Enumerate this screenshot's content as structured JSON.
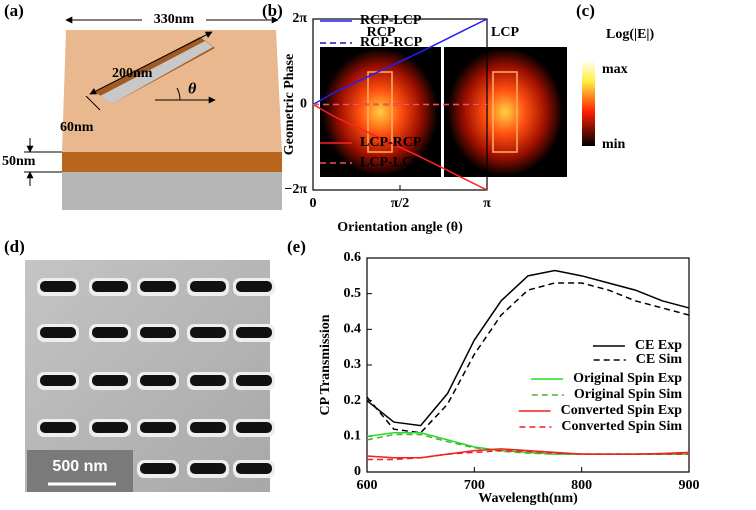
{
  "panel_labels": [
    "(a)",
    "(b)",
    "(c)",
    "(d)",
    "(e)"
  ],
  "diagram_a": {
    "width": "330nm",
    "length": "200nm",
    "slot_width": "60nm",
    "height": "50nm",
    "angle": "θ"
  },
  "field_map": {
    "labels": [
      "RCP",
      "LCP"
    ],
    "colorbar_title": "Log(|E|)",
    "max": "max",
    "min": "min"
  },
  "sem_image": {
    "scale_bar": "500 nm"
  },
  "chart_data": [
    {
      "type": "line",
      "xlabel": "Orientation angle (θ)",
      "ylabel": "Geometric Phase",
      "x": [
        0,
        0.3927,
        0.7854,
        1.1781,
        1.5708,
        1.9635,
        2.3562,
        2.7489,
        3.1416
      ],
      "xlim": [
        0,
        3.1416
      ],
      "xticks": [
        0,
        {
          "value": 1.5708,
          "label": "π/2"
        },
        {
          "value": 3.1416,
          "label": "π"
        }
      ],
      "ylim": [
        -6.2832,
        6.2832
      ],
      "yticks": [
        {
          "value": -6.2832,
          "label": "−2π"
        },
        0,
        {
          "value": 6.2832,
          "label": "2π"
        }
      ],
      "series": [
        {
          "name": "RCP-LCP",
          "color": "#1f1fff",
          "dashed": false,
          "values": [
            0,
            0.9,
            1.65,
            2.4,
            3.15,
            3.9,
            4.7,
            5.5,
            6.2832
          ]
        },
        {
          "name": "RCP-RCP",
          "color": "#1a1aa0",
          "dashed": true,
          "values": [
            0,
            0,
            0,
            0,
            0,
            0,
            0,
            0,
            0
          ]
        },
        {
          "name": "LCP-RCP",
          "color": "#ff2020",
          "dashed": false,
          "values": [
            0,
            -0.9,
            -1.65,
            -2.4,
            -3.15,
            -3.9,
            -4.7,
            -5.5,
            -6.2832
          ]
        },
        {
          "name": "LCP-LCP",
          "color": "#ff5050",
          "dashed": true,
          "values": [
            0,
            0,
            0,
            0,
            0,
            0,
            0,
            0,
            0
          ]
        }
      ]
    },
    {
      "type": "line",
      "xlabel": "Wavelength(nm)",
      "ylabel": "CP Transmission",
      "x": [
        600,
        625,
        650,
        675,
        700,
        725,
        750,
        775,
        800,
        825,
        850,
        875,
        900
      ],
      "xlim": [
        600,
        900
      ],
      "xticks": [
        600,
        700,
        800,
        900
      ],
      "ylim": [
        0,
        0.6
      ],
      "yticks": [
        0,
        0.1,
        0.2,
        0.3,
        0.4,
        0.5,
        0.6
      ],
      "series": [
        {
          "name": "CE Exp",
          "color": "#000000",
          "dashed": false,
          "values": [
            0.2,
            0.14,
            0.13,
            0.22,
            0.37,
            0.48,
            0.55,
            0.565,
            0.55,
            0.53,
            0.51,
            0.48,
            0.46
          ]
        },
        {
          "name": "CE Sim",
          "color": "#000000",
          "dashed": true,
          "values": [
            0.21,
            0.12,
            0.11,
            0.19,
            0.33,
            0.44,
            0.51,
            0.53,
            0.53,
            0.51,
            0.48,
            0.46,
            0.44
          ]
        },
        {
          "name": "Original Spin Exp",
          "color": "#22dd22",
          "dashed": false,
          "values": [
            0.1,
            0.11,
            0.11,
            0.09,
            0.07,
            0.06,
            0.055,
            0.05,
            0.05,
            0.05,
            0.05,
            0.05,
            0.05
          ]
        },
        {
          "name": "Original Spin Sim",
          "color": "#55aa33",
          "dashed": true,
          "values": [
            0.09,
            0.105,
            0.105,
            0.085,
            0.068,
            0.058,
            0.053,
            0.05,
            0.05,
            0.05,
            0.05,
            0.05,
            0.05
          ]
        },
        {
          "name": "Converted Spin Exp",
          "color": "#ee2020",
          "dashed": false,
          "values": [
            0.045,
            0.04,
            0.04,
            0.05,
            0.06,
            0.065,
            0.06,
            0.055,
            0.05,
            0.05,
            0.05,
            0.052,
            0.055
          ]
        },
        {
          "name": "Converted Spin Sim",
          "color": "#ee2020",
          "dashed": true,
          "values": [
            0.035,
            0.035,
            0.04,
            0.05,
            0.055,
            0.06,
            0.058,
            0.053,
            0.05,
            0.05,
            0.05,
            0.05,
            0.05
          ]
        }
      ]
    }
  ]
}
